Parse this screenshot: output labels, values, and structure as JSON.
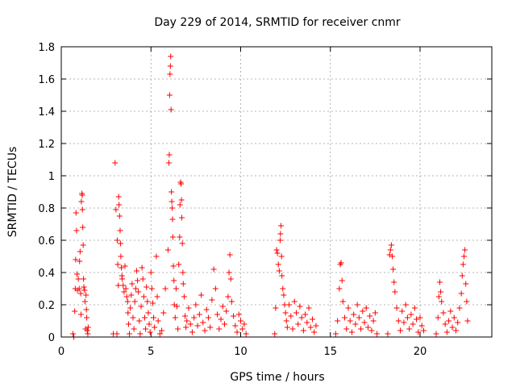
{
  "chart_data": {
    "type": "scatter",
    "title": "Day 229 of 2014, SRMTID for receiver cnmr",
    "xlabel": "GPS time / hours",
    "ylabel": "SRMTID / TECUs",
    "xlim": [
      0,
      24
    ],
    "ylim": [
      0,
      1.8
    ],
    "xticks": [
      0,
      5,
      10,
      15,
      20
    ],
    "yticks": [
      0,
      0.2,
      0.4,
      0.6,
      0.8,
      1,
      1.2,
      1.4,
      1.6,
      1.8
    ],
    "ytick_labels": [
      "0",
      "0.2",
      "0.4",
      "0.6",
      "0.8",
      "1",
      "1.2",
      "1.4",
      "1.6",
      "1.8"
    ],
    "grid": true,
    "marker": "+",
    "series": [
      {
        "color": "#ff0000",
        "points": [
          [
            0.65,
            0.02
          ],
          [
            0.7,
            0.0
          ],
          [
            0.75,
            0.16
          ],
          [
            0.78,
            0.3
          ],
          [
            0.8,
            0.48
          ],
          [
            0.82,
            0.77
          ],
          [
            0.85,
            0.66
          ],
          [
            0.88,
            0.39
          ],
          [
            0.9,
            0.29
          ],
          [
            0.95,
            0.36
          ],
          [
            1.0,
            0.3
          ],
          [
            1.02,
            0.47
          ],
          [
            1.05,
            0.53
          ],
          [
            1.08,
            0.27
          ],
          [
            1.1,
            0.14
          ],
          [
            1.12,
            0.84
          ],
          [
            1.15,
            0.89
          ],
          [
            1.17,
            0.88
          ],
          [
            1.18,
            0.79
          ],
          [
            1.2,
            0.68
          ],
          [
            1.22,
            0.57
          ],
          [
            1.24,
            0.36
          ],
          [
            1.26,
            0.31
          ],
          [
            1.3,
            0.29
          ],
          [
            1.32,
            0.22
          ],
          [
            1.35,
            0.05
          ],
          [
            1.38,
            0.26
          ],
          [
            1.4,
            0.17
          ],
          [
            1.42,
            0.12
          ],
          [
            1.45,
            0.04
          ],
          [
            1.48,
            0.02
          ],
          [
            1.5,
            0.06
          ],
          [
            2.9,
            0.02
          ],
          [
            3.0,
            1.08
          ],
          [
            3.05,
            0.79
          ],
          [
            3.1,
            0.02
          ],
          [
            3.12,
            0.6
          ],
          [
            3.15,
            0.45
          ],
          [
            3.18,
            0.32
          ],
          [
            3.2,
            0.87
          ],
          [
            3.22,
            0.82
          ],
          [
            3.25,
            0.75
          ],
          [
            3.28,
            0.66
          ],
          [
            3.3,
            0.58
          ],
          [
            3.32,
            0.5
          ],
          [
            3.35,
            0.43
          ],
          [
            3.38,
            0.38
          ],
          [
            3.4,
            0.36
          ],
          [
            3.45,
            0.32
          ],
          [
            3.5,
            0.28
          ],
          [
            3.55,
            0.44
          ],
          [
            3.6,
            0.3
          ],
          [
            3.65,
            0.25
          ],
          [
            3.7,
            0.22
          ],
          [
            3.72,
            0.15
          ],
          [
            3.75,
            0.08
          ],
          [
            3.8,
            0.02
          ],
          [
            3.85,
            0.18
          ],
          [
            3.9,
            0.26
          ],
          [
            3.95,
            0.33
          ],
          [
            4.0,
            0.12
          ],
          [
            4.05,
            0.05
          ],
          [
            4.1,
            0.22
          ],
          [
            4.15,
            0.3
          ],
          [
            4.2,
            0.41
          ],
          [
            4.25,
            0.35
          ],
          [
            4.3,
            0.28
          ],
          [
            4.35,
            0.1
          ],
          [
            4.4,
            0.02
          ],
          [
            4.45,
            0.19
          ],
          [
            4.5,
            0.43
          ],
          [
            4.55,
            0.36
          ],
          [
            4.6,
            0.25
          ],
          [
            4.65,
            0.12
          ],
          [
            4.7,
            0.05
          ],
          [
            4.75,
            0.31
          ],
          [
            4.8,
            0.22
          ],
          [
            4.85,
            0.15
          ],
          [
            4.9,
            0.08
          ],
          [
            4.95,
            0.03
          ],
          [
            5.0,
            0.4
          ],
          [
            5.05,
            0.3
          ],
          [
            5.1,
            0.21
          ],
          [
            5.15,
            0.12
          ],
          [
            5.2,
            0.06
          ],
          [
            5.3,
            0.5
          ],
          [
            5.35,
            0.25
          ],
          [
            5.4,
            0.1
          ],
          [
            5.5,
            0.02
          ],
          [
            5.6,
            0.04
          ],
          [
            5.7,
            0.15
          ],
          [
            5.8,
            0.3
          ],
          [
            5.95,
            0.54
          ],
          [
            6.0,
            1.08
          ],
          [
            6.02,
            1.13
          ],
          [
            6.04,
            1.5
          ],
          [
            6.06,
            1.63
          ],
          [
            6.08,
            1.68
          ],
          [
            6.1,
            1.74
          ],
          [
            6.12,
            1.41
          ],
          [
            6.14,
            0.9
          ],
          [
            6.16,
            0.84
          ],
          [
            6.18,
            0.8
          ],
          [
            6.2,
            0.73
          ],
          [
            6.22,
            0.62
          ],
          [
            6.25,
            0.44
          ],
          [
            6.28,
            0.35
          ],
          [
            6.3,
            0.2
          ],
          [
            6.35,
            0.12
          ],
          [
            6.4,
            0.3
          ],
          [
            6.45,
            0.19
          ],
          [
            6.5,
            0.05
          ],
          [
            6.55,
            0.45
          ],
          [
            6.6,
            0.62
          ],
          [
            6.62,
            0.82
          ],
          [
            6.65,
            0.96
          ],
          [
            6.68,
            0.95
          ],
          [
            6.7,
            0.85
          ],
          [
            6.72,
            0.74
          ],
          [
            6.75,
            0.58
          ],
          [
            6.78,
            0.4
          ],
          [
            6.8,
            0.33
          ],
          [
            6.85,
            0.25
          ],
          [
            6.9,
            0.13
          ],
          [
            6.95,
            0.06
          ],
          [
            7.0,
            0.1
          ],
          [
            7.1,
            0.18
          ],
          [
            7.2,
            0.08
          ],
          [
            7.3,
            0.03
          ],
          [
            7.4,
            0.12
          ],
          [
            7.5,
            0.2
          ],
          [
            7.6,
            0.07
          ],
          [
            7.7,
            0.14
          ],
          [
            7.8,
            0.26
          ],
          [
            7.9,
            0.09
          ],
          [
            8.0,
            0.04
          ],
          [
            8.1,
            0.17
          ],
          [
            8.2,
            0.12
          ],
          [
            8.3,
            0.06
          ],
          [
            8.4,
            0.23
          ],
          [
            8.5,
            0.42
          ],
          [
            8.6,
            0.3
          ],
          [
            8.7,
            0.14
          ],
          [
            8.8,
            0.05
          ],
          [
            8.9,
            0.11
          ],
          [
            9.0,
            0.19
          ],
          [
            9.1,
            0.08
          ],
          [
            9.2,
            0.16
          ],
          [
            9.3,
            0.25
          ],
          [
            9.35,
            0.4
          ],
          [
            9.4,
            0.51
          ],
          [
            9.45,
            0.36
          ],
          [
            9.5,
            0.22
          ],
          [
            9.6,
            0.13
          ],
          [
            9.7,
            0.07
          ],
          [
            9.8,
            0.03
          ],
          [
            9.9,
            0.14
          ],
          [
            10.0,
            0.1
          ],
          [
            10.1,
            0.05
          ],
          [
            10.2,
            0.08
          ],
          [
            10.3,
            0.02
          ],
          [
            11.9,
            0.02
          ],
          [
            11.95,
            0.18
          ],
          [
            12.0,
            0.54
          ],
          [
            12.05,
            0.52
          ],
          [
            12.1,
            0.45
          ],
          [
            12.15,
            0.41
          ],
          [
            12.2,
            0.6
          ],
          [
            12.22,
            0.64
          ],
          [
            12.25,
            0.69
          ],
          [
            12.28,
            0.5
          ],
          [
            12.3,
            0.38
          ],
          [
            12.35,
            0.3
          ],
          [
            12.4,
            0.26
          ],
          [
            12.45,
            0.2
          ],
          [
            12.5,
            0.15
          ],
          [
            12.55,
            0.1
          ],
          [
            12.6,
            0.06
          ],
          [
            12.7,
            0.2
          ],
          [
            12.8,
            0.13
          ],
          [
            12.9,
            0.05
          ],
          [
            13.0,
            0.22
          ],
          [
            13.1,
            0.15
          ],
          [
            13.2,
            0.08
          ],
          [
            13.3,
            0.19
          ],
          [
            13.4,
            0.12
          ],
          [
            13.5,
            0.04
          ],
          [
            13.6,
            0.14
          ],
          [
            13.7,
            0.09
          ],
          [
            13.8,
            0.18
          ],
          [
            13.9,
            0.06
          ],
          [
            14.0,
            0.11
          ],
          [
            14.1,
            0.03
          ],
          [
            14.2,
            0.07
          ],
          [
            15.3,
            0.02
          ],
          [
            15.4,
            0.1
          ],
          [
            15.5,
            0.3
          ],
          [
            15.55,
            0.45
          ],
          [
            15.6,
            0.46
          ],
          [
            15.65,
            0.35
          ],
          [
            15.7,
            0.22
          ],
          [
            15.8,
            0.12
          ],
          [
            15.9,
            0.05
          ],
          [
            16.0,
            0.18
          ],
          [
            16.1,
            0.1
          ],
          [
            16.2,
            0.03
          ],
          [
            16.3,
            0.14
          ],
          [
            16.4,
            0.08
          ],
          [
            16.5,
            0.2
          ],
          [
            16.6,
            0.12
          ],
          [
            16.7,
            0.05
          ],
          [
            16.8,
            0.16
          ],
          [
            16.9,
            0.09
          ],
          [
            17.0,
            0.18
          ],
          [
            17.1,
            0.06
          ],
          [
            17.2,
            0.13
          ],
          [
            17.3,
            0.04
          ],
          [
            17.4,
            0.1
          ],
          [
            17.5,
            0.15
          ],
          [
            17.6,
            0.02
          ],
          [
            18.2,
            0.02
          ],
          [
            18.3,
            0.51
          ],
          [
            18.35,
            0.54
          ],
          [
            18.4,
            0.57
          ],
          [
            18.45,
            0.5
          ],
          [
            18.5,
            0.42
          ],
          [
            18.55,
            0.34
          ],
          [
            18.6,
            0.28
          ],
          [
            18.7,
            0.18
          ],
          [
            18.8,
            0.1
          ],
          [
            18.9,
            0.04
          ],
          [
            19.0,
            0.16
          ],
          [
            19.1,
            0.09
          ],
          [
            19.2,
            0.2
          ],
          [
            19.3,
            0.12
          ],
          [
            19.4,
            0.05
          ],
          [
            19.5,
            0.14
          ],
          [
            19.6,
            0.08
          ],
          [
            19.7,
            0.18
          ],
          [
            19.8,
            0.11
          ],
          [
            19.9,
            0.03
          ],
          [
            20.0,
            0.12
          ],
          [
            20.1,
            0.07
          ],
          [
            20.2,
            0.04
          ],
          [
            20.9,
            0.02
          ],
          [
            21.0,
            0.12
          ],
          [
            21.05,
            0.25
          ],
          [
            21.1,
            0.34
          ],
          [
            21.15,
            0.28
          ],
          [
            21.2,
            0.22
          ],
          [
            21.3,
            0.15
          ],
          [
            21.4,
            0.08
          ],
          [
            21.5,
            0.03
          ],
          [
            21.6,
            0.1
          ],
          [
            21.7,
            0.16
          ],
          [
            21.8,
            0.06
          ],
          [
            21.9,
            0.12
          ],
          [
            22.0,
            0.04
          ],
          [
            22.1,
            0.09
          ],
          [
            22.2,
            0.18
          ],
          [
            22.3,
            0.27
          ],
          [
            22.35,
            0.38
          ],
          [
            22.4,
            0.45
          ],
          [
            22.45,
            0.5
          ],
          [
            22.5,
            0.54
          ],
          [
            22.55,
            0.33
          ],
          [
            22.6,
            0.22
          ],
          [
            22.65,
            0.1
          ]
        ]
      }
    ]
  }
}
